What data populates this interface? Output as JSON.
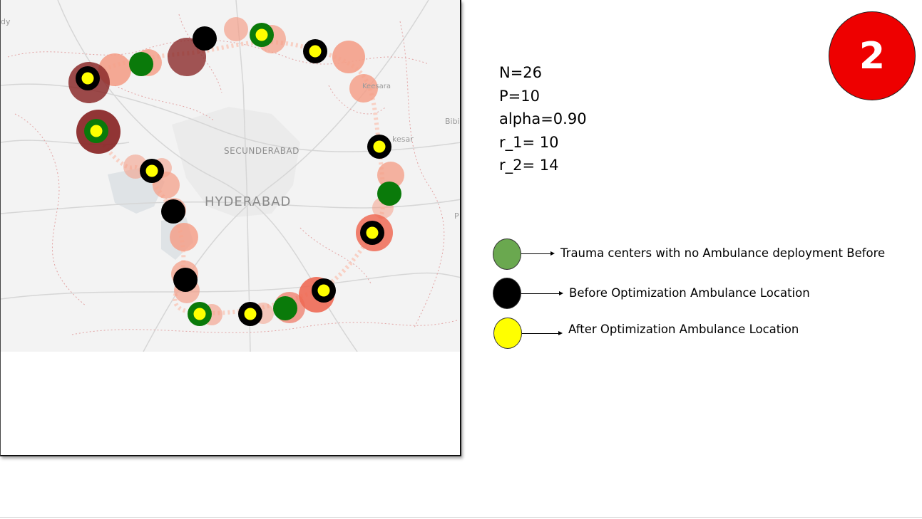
{
  "slide": {
    "badge_number": "2",
    "badge_color": "#ee0000"
  },
  "params": {
    "n": "N=26",
    "p": "P=10",
    "alpha": "alpha=0.90",
    "r1": "r_1= 10",
    "r2": "r_2= 14"
  },
  "map": {
    "labels": {
      "hyderabad": "HYDERABAD",
      "secunderabad": "SECUNDERABAD",
      "keesara": "Keesara",
      "bibi": "Bibi",
      "kesar": "kesar",
      "dy": "dy",
      "p": "P"
    },
    "colors": {
      "trauma_center": "#0a7a0a",
      "before_location": "#000000",
      "after_location": "#ffff00",
      "coverage_light": "#f4a08a",
      "coverage_medium": "#ee6a55",
      "coverage_dark": "#8b2a2a"
    }
  },
  "legend": {
    "items": [
      {
        "label": "Trauma centers with no Ambulance deployment Before",
        "color": "#6aa84f"
      },
      {
        "label": "Before Optimization Ambulance Location",
        "color": "#000000"
      },
      {
        "label": "After Optimization Ambulance Location",
        "color": "#ffff00"
      }
    ]
  }
}
